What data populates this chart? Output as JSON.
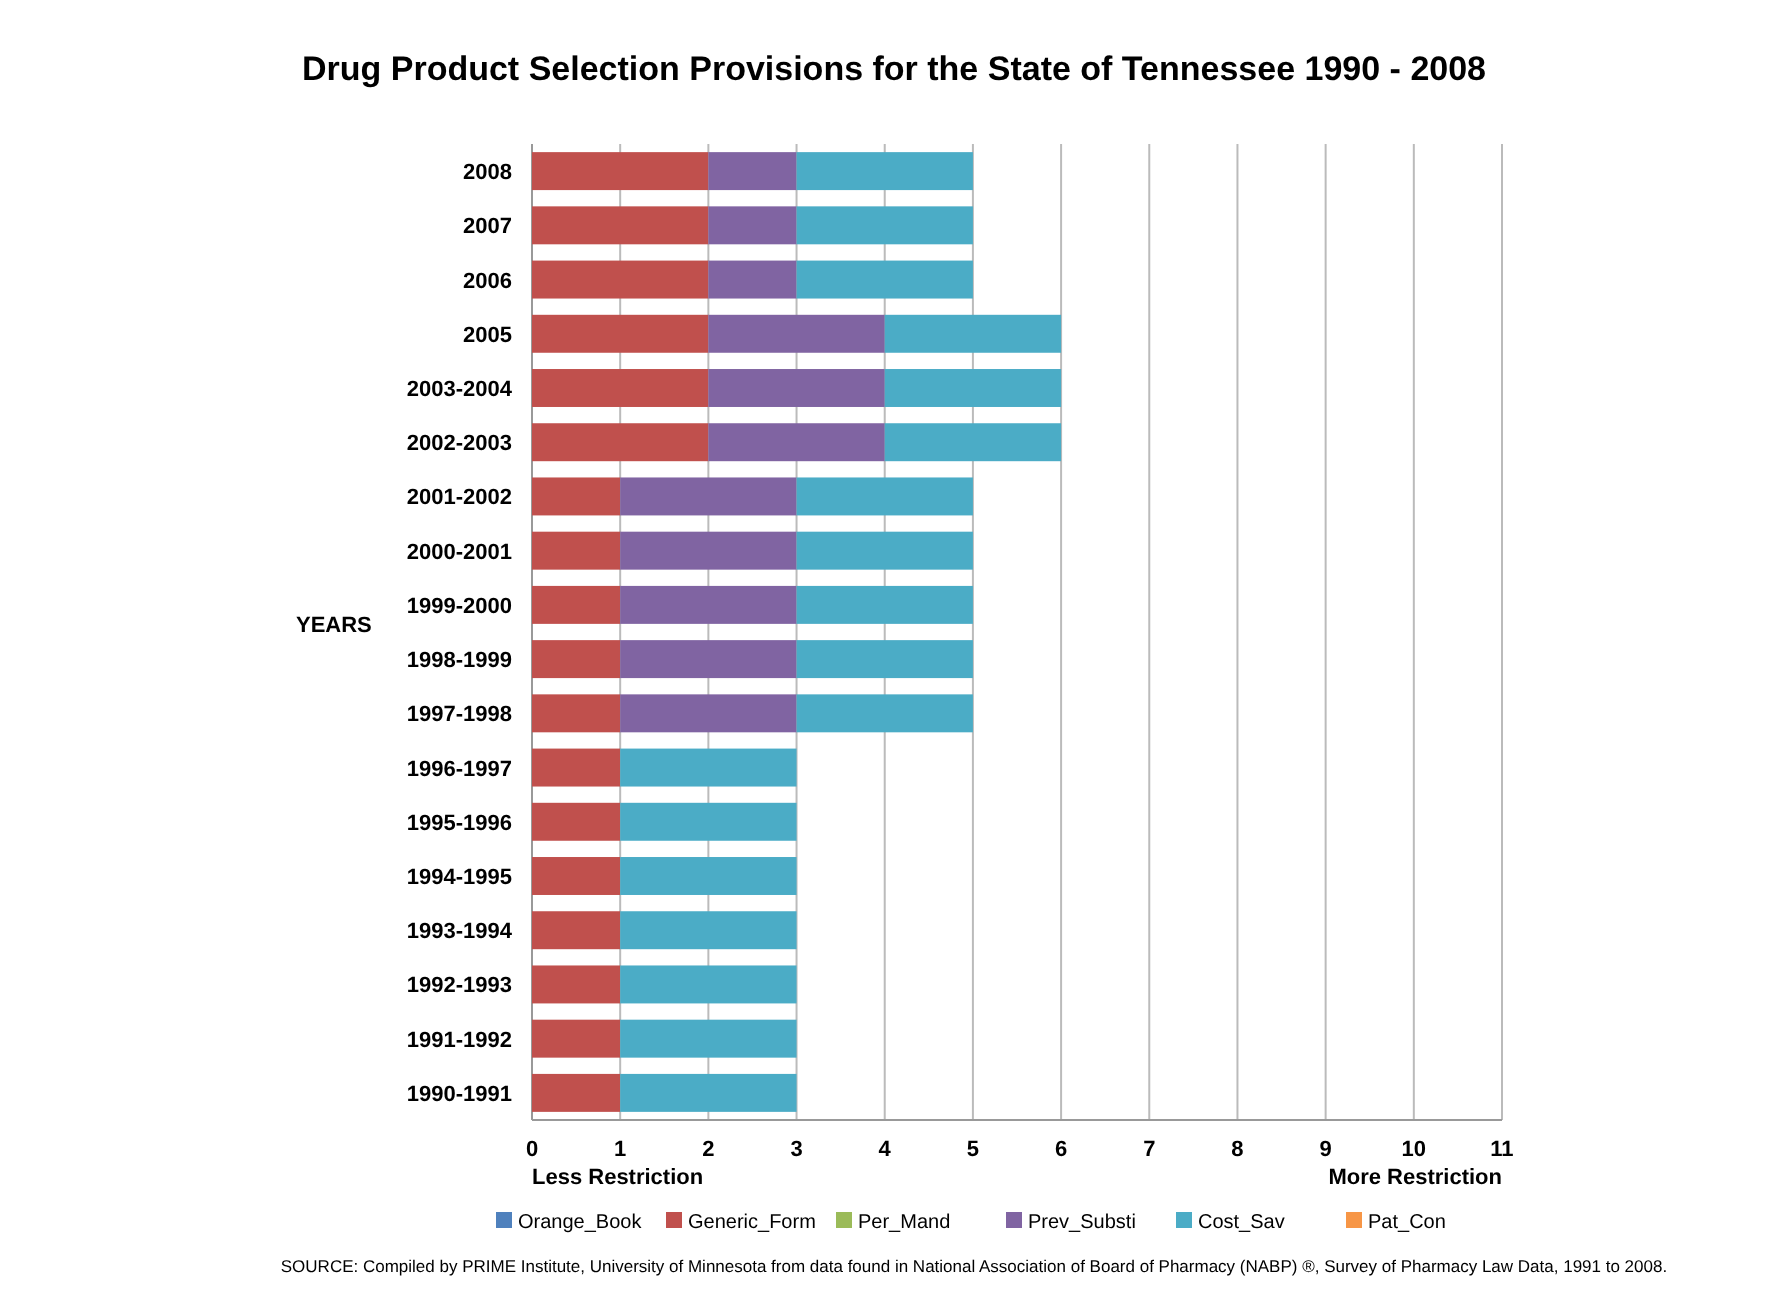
{
  "chart_data": {
    "type": "bar",
    "orientation": "horizontal",
    "stacked": true,
    "title": "Drug Product Selection Provisions for the State of Tennessee 1990 - 2008",
    "ylabel": "YEARS",
    "categories": [
      "2008",
      "2007",
      "2006",
      "2005",
      "2003-2004",
      "2002-2003",
      "2001-2002",
      "2000-2001",
      "1999-2000",
      "1998-1999",
      "1997-1998",
      "1996-1997",
      "1995-1996",
      "1994-1995",
      "1993-1994",
      "1992-1993",
      "1991-1992",
      "1990-1991"
    ],
    "series": [
      {
        "name": "Orange_Book",
        "color": "#4f81bd",
        "values": [
          0,
          0,
          0,
          0,
          0,
          0,
          0,
          0,
          0,
          0,
          0,
          0,
          0,
          0,
          0,
          0,
          0,
          0
        ]
      },
      {
        "name": "Generic_Form",
        "color": "#c0504d",
        "values": [
          2,
          2,
          2,
          2,
          2,
          2,
          1,
          1,
          1,
          1,
          1,
          1,
          1,
          1,
          1,
          1,
          1,
          1
        ]
      },
      {
        "name": "Per_Mand",
        "color": "#9bbb59",
        "values": [
          0,
          0,
          0,
          0,
          0,
          0,
          0,
          0,
          0,
          0,
          0,
          0,
          0,
          0,
          0,
          0,
          0,
          0
        ]
      },
      {
        "name": "Prev_Substi",
        "color": "#8064a2",
        "values": [
          1,
          1,
          1,
          2,
          2,
          2,
          2,
          2,
          2,
          2,
          2,
          0,
          0,
          0,
          0,
          0,
          0,
          0
        ]
      },
      {
        "name": "Cost_Sav",
        "color": "#4bacc6",
        "values": [
          2,
          2,
          2,
          2,
          2,
          2,
          2,
          2,
          2,
          2,
          2,
          2,
          2,
          2,
          2,
          2,
          2,
          2
        ]
      },
      {
        "name": "Pat_Con",
        "color": "#f79646",
        "values": [
          0,
          0,
          0,
          0,
          0,
          0,
          0,
          0,
          0,
          0,
          0,
          0,
          0,
          0,
          0,
          0,
          0,
          0
        ]
      }
    ],
    "xlim": [
      0,
      11
    ],
    "xticks": [
      0,
      1,
      2,
      3,
      4,
      5,
      6,
      7,
      8,
      9,
      10,
      11
    ],
    "grid": "x",
    "legend": "bottom",
    "annotations": [
      "Less Restriction",
      "More Restriction",
      "SOURCE:  Compiled by PRIME Institute, University of Minnesota from data found in National Association of Board of Pharmacy (NABP) ®, Survey of Pharmacy Law Data, 1991 to 2008."
    ]
  }
}
